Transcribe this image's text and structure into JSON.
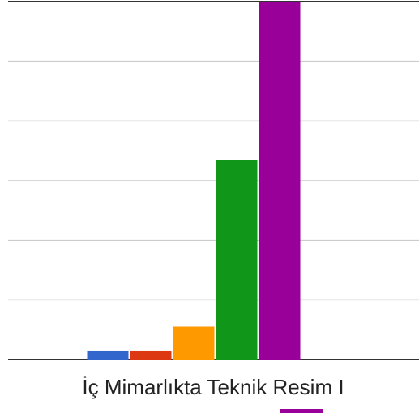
{
  "chart_data": {
    "type": "bar",
    "categories": [
      "İç Mimarlıkta Teknik Resim I"
    ],
    "series": [
      {
        "color": "#3366cc",
        "values": [
          0.15
        ]
      },
      {
        "color": "#dc3912",
        "values": [
          0.15
        ]
      },
      {
        "color": "#ff9900",
        "values": [
          0.55
        ]
      },
      {
        "color": "#109618",
        "values": [
          3.35
        ]
      },
      {
        "color": "#990099",
        "values": [
          6
        ]
      }
    ],
    "ylim": [
      0,
      6
    ],
    "yticks": [
      0,
      1,
      2,
      3,
      4,
      5,
      6
    ],
    "grid": true
  }
}
